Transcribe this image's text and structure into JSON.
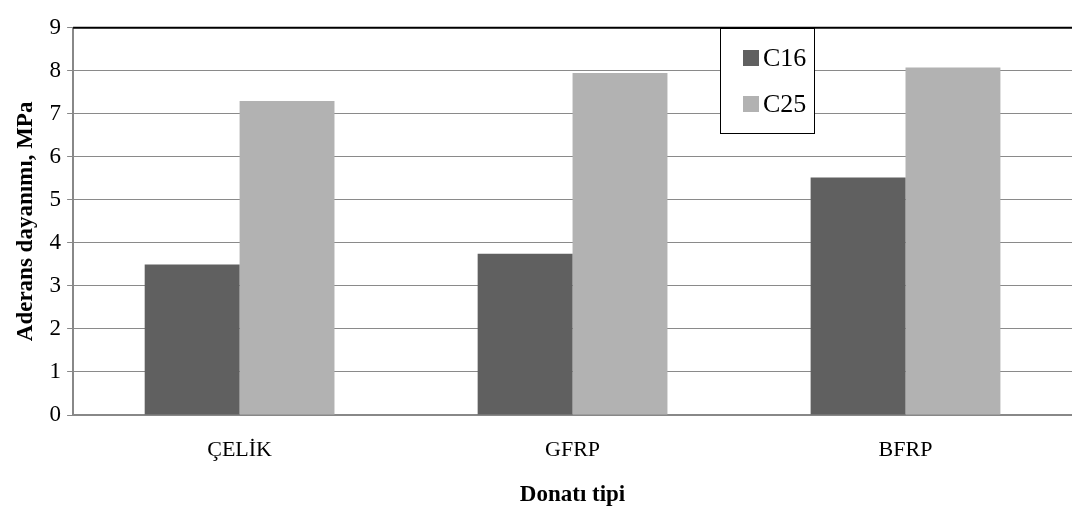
{
  "chart_data": {
    "type": "bar",
    "xlabel": "Donatı tipi",
    "ylabel": "Aderans dayanımı, MPa",
    "categories": [
      "ÇELİK",
      "GFRP",
      "BFRP"
    ],
    "series": [
      {
        "name": "C16",
        "color": "#606060",
        "values": [
          3.5,
          3.75,
          5.52
        ]
      },
      {
        "name": "C25",
        "color": "#b2b2b2",
        "values": [
          7.3,
          7.95,
          8.08
        ]
      }
    ],
    "ylim": [
      0,
      9
    ],
    "yticks": [
      0,
      1,
      2,
      3,
      4,
      5,
      6,
      7,
      8,
      9
    ],
    "grid": "y",
    "legend": "top"
  }
}
